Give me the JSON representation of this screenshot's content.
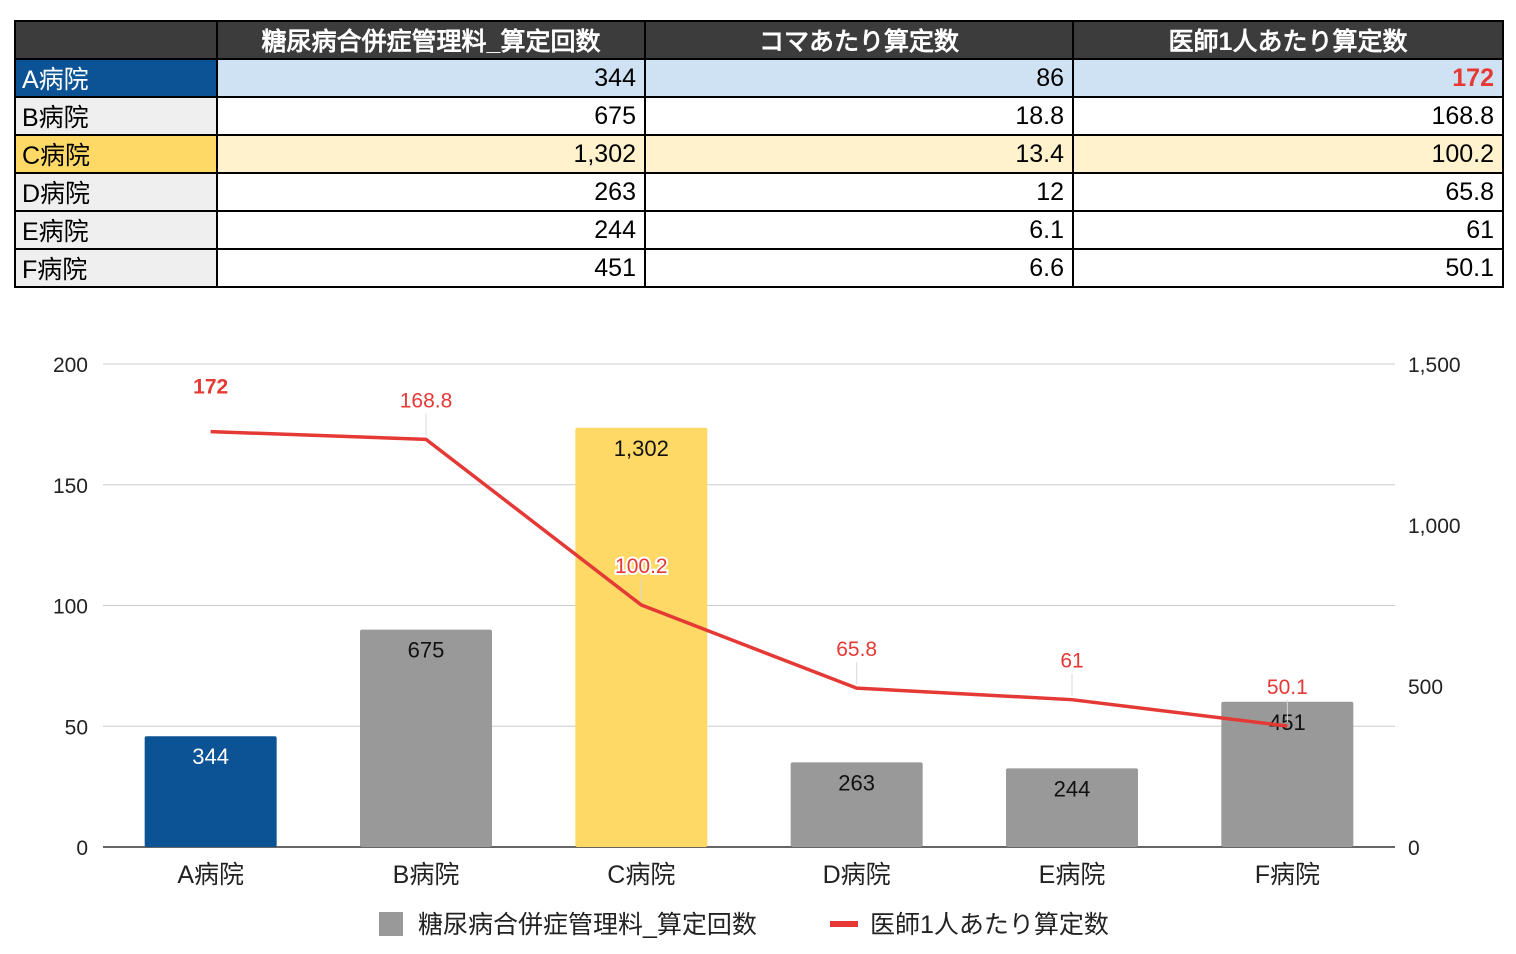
{
  "table": {
    "headers": [
      "",
      "糖尿病合併症管理料_算定回数",
      "コマあたり算定数",
      "医師1人あたり算定数"
    ],
    "rows": [
      {
        "name": "A病院",
        "count": "344",
        "per_koma": "86",
        "per_doctor": "172"
      },
      {
        "name": "B病院",
        "count": "675",
        "per_koma": "18.8",
        "per_doctor": "168.8"
      },
      {
        "name": "C病院",
        "count": "1,302",
        "per_koma": "13.4",
        "per_doctor": "100.2"
      },
      {
        "name": "D病院",
        "count": "263",
        "per_koma": "12",
        "per_doctor": "65.8"
      },
      {
        "name": "E病院",
        "count": "244",
        "per_koma": "6.1",
        "per_doctor": "61"
      },
      {
        "name": "F病院",
        "count": "451",
        "per_koma": "6.6",
        "per_doctor": "50.1"
      }
    ]
  },
  "colors": {
    "a_blue": "#0b5394",
    "c_yellow": "#ffd966",
    "gray_bar": "#999999",
    "line_red": "#e53935",
    "header_dark": "#3c3c3c",
    "a_row": "#cfe2f3",
    "c_row": "#fff2cc"
  },
  "chart_data": {
    "type": "bar",
    "categories": [
      "A病院",
      "B病院",
      "C病院",
      "D病院",
      "E病院",
      "F病院"
    ],
    "series": [
      {
        "name": "糖尿病合併症管理料_算定回数",
        "type": "bar",
        "axis": "right",
        "values": [
          344,
          675,
          1302,
          263,
          244,
          451
        ],
        "labels": [
          "344",
          "675",
          "1,302",
          "263",
          "244",
          "451"
        ],
        "colors": [
          "#0b5394",
          "#999999",
          "#ffd966",
          "#999999",
          "#999999",
          "#999999"
        ]
      },
      {
        "name": "医師1人あたり算定数",
        "type": "line",
        "axis": "left",
        "values": [
          172,
          168.8,
          100.2,
          65.8,
          61,
          50.1
        ],
        "labels": [
          "172",
          "168.8",
          "100.2",
          "65.8",
          "61",
          "50.1"
        ],
        "color": "#e53935"
      }
    ],
    "left_axis": {
      "range": [
        0,
        200
      ],
      "ticks": [
        0,
        50,
        100,
        150,
        200
      ],
      "tick_labels": [
        "0",
        "50",
        "100",
        "150",
        "200"
      ]
    },
    "right_axis": {
      "range": [
        0,
        1500
      ],
      "ticks": [
        0,
        500,
        1000,
        1500
      ],
      "tick_labels": [
        "0",
        "500",
        "1,000",
        "1,500"
      ]
    },
    "grid": true,
    "legend_position": "bottom"
  }
}
